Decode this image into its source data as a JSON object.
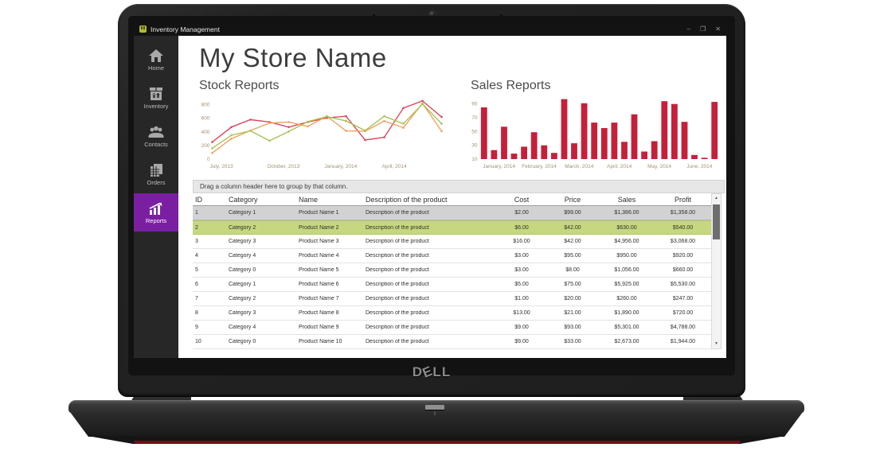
{
  "window": {
    "title": "Inventory Management",
    "controls": [
      {
        "name": "minimize",
        "glyph": "–"
      },
      {
        "name": "maximize",
        "glyph": "❒"
      },
      {
        "name": "close",
        "glyph": "✕"
      }
    ]
  },
  "sidebar": {
    "active_color": "#7b1fa2",
    "items": [
      {
        "label": "Home",
        "icon": "home-icon",
        "active": false
      },
      {
        "label": "Inventory",
        "icon": "inventory-box-icon",
        "active": false
      },
      {
        "label": "Contacts",
        "icon": "contacts-people-icon",
        "active": false
      },
      {
        "label": "Orders",
        "icon": "orders-documents-icon",
        "active": false
      },
      {
        "label": "Reports",
        "icon": "reports-chart-icon",
        "active": true
      }
    ]
  },
  "page": {
    "title": "My Store Name"
  },
  "chart_data": [
    {
      "type": "line",
      "title": "Stock Reports",
      "x": [
        "Jul 2013",
        "Aug 2013",
        "Sep 2013",
        "Oct 2013",
        "Nov 2013",
        "Dec 2013",
        "Jan 2014",
        "Feb 2014",
        "Mar 2014",
        "Apr 2014",
        "May 2014",
        "Jun 2014",
        "Jul 2014"
      ],
      "x_tick_labels": [
        "July, 2013",
        "October, 2013",
        "January, 2014",
        "April, 2014"
      ],
      "x_tick_positions": [
        0,
        3,
        6,
        9
      ],
      "y_ticks": [
        0,
        200,
        400,
        600,
        800
      ],
      "ylim": [
        0,
        900
      ],
      "grid": false,
      "legend": "none",
      "series": [
        {
          "name": "series-1",
          "color": "#d9485f",
          "values": [
            250,
            470,
            580,
            545,
            470,
            545,
            605,
            630,
            280,
            320,
            750,
            855,
            620
          ]
        },
        {
          "name": "series-2",
          "color": "#f0a263",
          "values": [
            90,
            300,
            420,
            530,
            545,
            480,
            630,
            415,
            410,
            560,
            460,
            820,
            410
          ]
        },
        {
          "name": "series-3",
          "color": "#a6c353",
          "values": [
            160,
            350,
            415,
            270,
            405,
            550,
            625,
            560,
            420,
            630,
            520,
            810,
            520
          ]
        }
      ],
      "axis_label_color": "#a3936f"
    },
    {
      "type": "bar",
      "title": "Sales Reports",
      "values": [
        85,
        23,
        57,
        18,
        28,
        49,
        30,
        19,
        97,
        33,
        91,
        63,
        55,
        63,
        35,
        75,
        21,
        36,
        94,
        90,
        64,
        16,
        12,
        93
      ],
      "bars_per_group": 4,
      "group_labels": [
        "January, 2014",
        "February, 2014",
        "March, 2014",
        "April, 2014",
        "May, 2014",
        "June, 2014"
      ],
      "y_ticks": [
        10,
        30,
        50,
        70,
        90
      ],
      "ylim": [
        10,
        100
      ],
      "grid": false,
      "legend": "none",
      "bar_color": "#c5203a",
      "axis_label_color": "#a3936f"
    }
  ],
  "table": {
    "group_hint": "Drag a column header here to group by that column.",
    "columns": [
      "ID",
      "Category",
      "Name",
      "Description of the product",
      "Cost",
      "Price",
      "Sales",
      "Profit"
    ],
    "selected_row_index": 0,
    "highlighted_row_index": 1,
    "rows": [
      [
        "1",
        "Category 1",
        "Product Name 1",
        "Description of the product",
        "$2.00",
        "$99.00",
        "$1,386.00",
        "$1,358.00"
      ],
      [
        "2",
        "Category 2",
        "Product Name 2",
        "Description of the product",
        "$6.00",
        "$42.00",
        "$630.00",
        "$540.00"
      ],
      [
        "3",
        "Category 3",
        "Product Name 3",
        "Description of the product",
        "$16.00",
        "$42.00",
        "$4,956.00",
        "$3,068.00"
      ],
      [
        "4",
        "Category 4",
        "Product Name 4",
        "Description of the product",
        "$3.00",
        "$95.00",
        "$950.00",
        "$920.00"
      ],
      [
        "5",
        "Category 0",
        "Product Name 5",
        "Description of the product",
        "$3.00",
        "$8.00",
        "$1,056.00",
        "$660.00"
      ],
      [
        "6",
        "Category 1",
        "Product Name 6",
        "Description of the product",
        "$5.00",
        "$75.00",
        "$5,925.00",
        "$5,530.00"
      ],
      [
        "7",
        "Category 2",
        "Product Name 7",
        "Description of the product",
        "$1.00",
        "$20.00",
        "$260.00",
        "$247.00"
      ],
      [
        "8",
        "Category 3",
        "Product Name 8",
        "Description of the product",
        "$13.00",
        "$21.00",
        "$1,890.00",
        "$720.00"
      ],
      [
        "9",
        "Category 4",
        "Product Name 9",
        "Description of the product",
        "$9.00",
        "$93.00",
        "$5,301.00",
        "$4,788.00"
      ],
      [
        "10",
        "Category 0",
        "Product Name 10",
        "Description of the product",
        "$9.00",
        "$33.00",
        "$2,673.00",
        "$1,944.00"
      ]
    ]
  },
  "scrollbar": {
    "up_glyph": "▲",
    "down_glyph": "▼"
  },
  "laptop": {
    "brand_letters": [
      "D",
      "E",
      "L",
      "L"
    ]
  }
}
